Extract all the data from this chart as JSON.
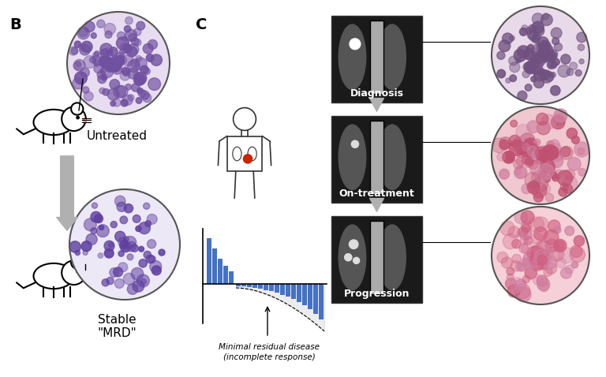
{
  "bg_color": "#ffffff",
  "panel_b_label": "B",
  "panel_c_label": "C",
  "untreated_label": "Untreated",
  "diagnosis_label": "Diagnosis",
  "on_treatment_label": "On-treatment",
  "progression_label": "Progression",
  "mrd_annotation_line1": "Minimal residual disease",
  "mrd_annotation_line2": "(incomplete response)",
  "arrow_color": "#b0b0b0",
  "bar_color": "#4472C4",
  "bar_heights_above": [
    3.2,
    2.5,
    1.8,
    1.3,
    0.9
  ],
  "bar_heights_below": [
    0.15,
    0.18,
    0.22,
    0.28,
    0.35,
    0.42,
    0.52,
    0.62,
    0.75,
    0.88,
    1.05,
    1.25,
    1.5,
    1.8,
    2.1,
    2.5
  ],
  "label_fontsize": 11,
  "annotation_fontsize": 8,
  "panel_label_fontsize": 14
}
